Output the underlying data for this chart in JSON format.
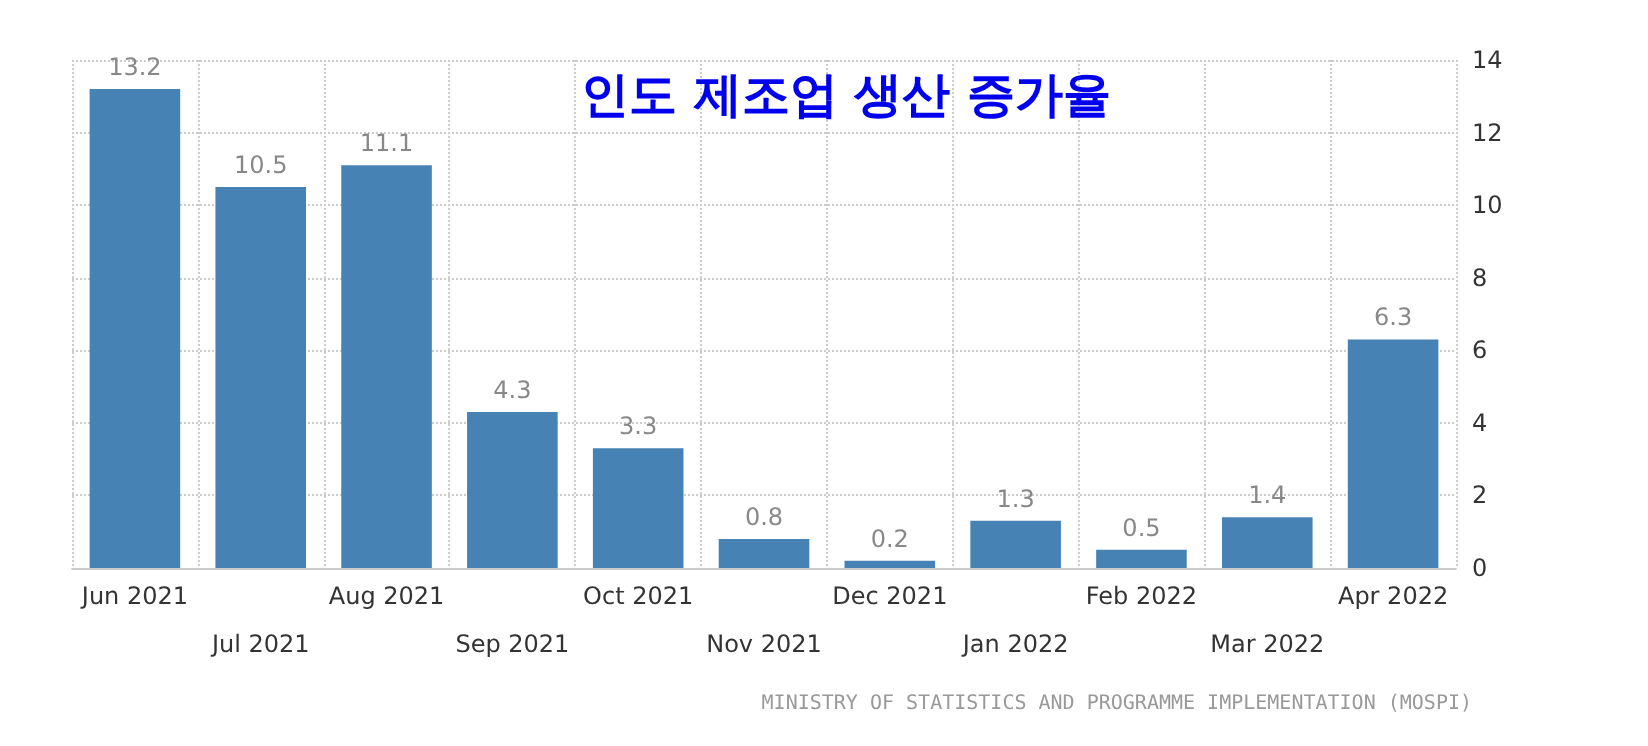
{
  "chart_data": {
    "type": "bar",
    "title": "인도 제조업 생산 증가율",
    "categories": [
      "Jun 2021",
      "Jul 2021",
      "Aug 2021",
      "Sep 2021",
      "Oct 2021",
      "Nov 2021",
      "Dec 2021",
      "Jan 2022",
      "Feb 2022",
      "Mar 2022",
      "Apr 2022"
    ],
    "values": [
      13.2,
      10.5,
      11.1,
      4.3,
      3.3,
      0.8,
      0.2,
      1.3,
      0.5,
      1.4,
      6.3
    ],
    "color": "#4682b4",
    "ylim": [
      0,
      14
    ],
    "yticks": [
      0,
      2,
      4,
      6,
      8,
      10,
      12,
      14
    ],
    "grid": true,
    "data_labels": true,
    "annotations": [
      "MINISTRY OF STATISTICS AND PROGRAMME IMPLEMENTATION (MOSPI)"
    ]
  }
}
